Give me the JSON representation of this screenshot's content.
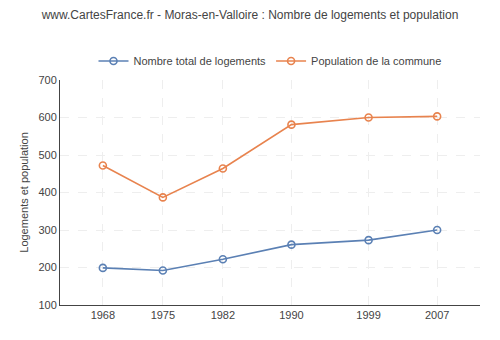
{
  "chart_data": {
    "type": "line",
    "title": "www.CartesFrance.fr - Moras-en-Valloire : Nombre de logements et population",
    "ylabel": "Logements et population",
    "x": [
      1968,
      1975,
      1982,
      1990,
      1999,
      2007
    ],
    "series": [
      {
        "name": "Nombre total de logements",
        "color": "#5b80b4",
        "values": [
          199,
          192,
          222,
          261,
          273,
          300
        ]
      },
      {
        "name": "Population de la commune",
        "color": "#e8834e",
        "values": [
          472,
          387,
          464,
          581,
          600,
          603
        ]
      }
    ],
    "xlim": [
      1963,
      2012
    ],
    "xticks": [
      1968,
      1975,
      1982,
      1990,
      1999,
      2007
    ],
    "ylim": [
      100,
      700
    ],
    "yticks": [
      100,
      200,
      300,
      400,
      500,
      600,
      700
    ],
    "grid": true,
    "legend": "top",
    "marker": "circle"
  }
}
